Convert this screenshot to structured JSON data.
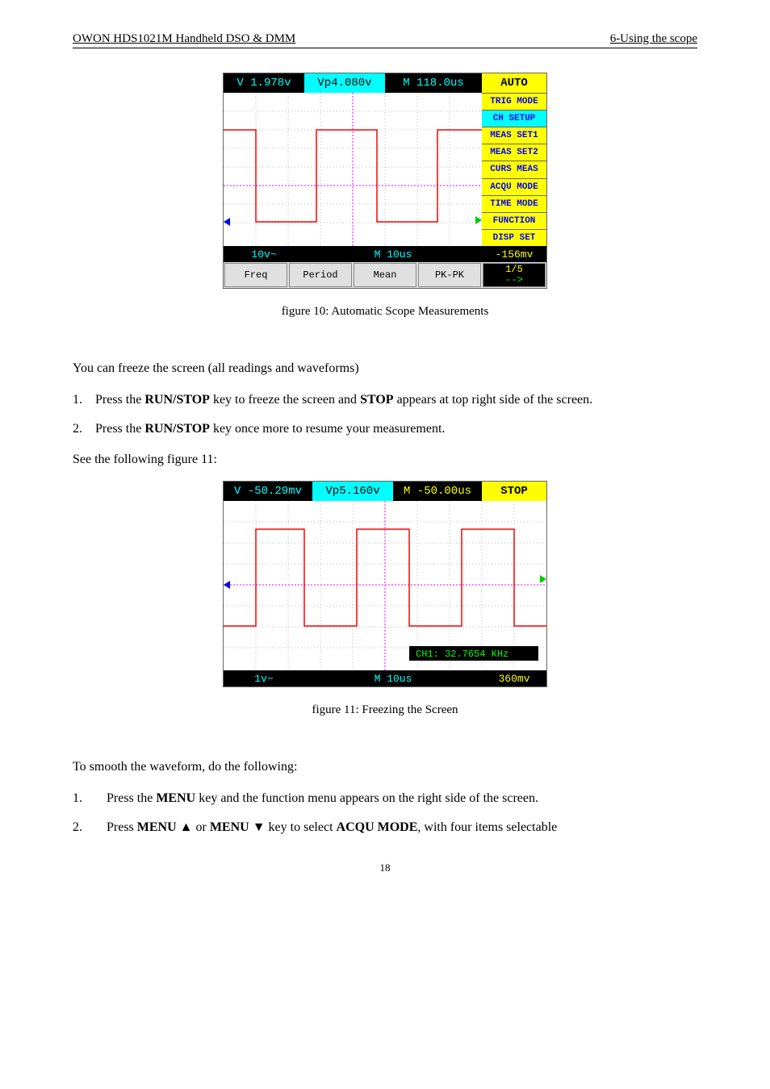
{
  "header": {
    "left": "OWON   HDS1021M Handheld DSO & DMM",
    "right": "6-Using the scope"
  },
  "scope1": {
    "top": {
      "v_label": "V 1.978v",
      "vp_label": "Vp4.080v",
      "m_label": "M 118.0us",
      "mode": "AUTO"
    },
    "menu": [
      "TRIG MODE",
      "CH SETUP",
      "MEAS SET1",
      "MEAS SET2",
      "CURS MEAS",
      "ACQU MODE",
      "TIME MODE",
      "FUNCTION",
      "DISP SET"
    ],
    "menu_hl_index": 1,
    "mid": {
      "left": "10v~",
      "center": "M 10us",
      "right": "-156mv"
    },
    "bottom": [
      "Freq",
      "Period",
      "Mean",
      "PK-PK"
    ],
    "bottom_page": "1/5",
    "bottom_arrow": "-->",
    "colors": {
      "bg_black": "#000000",
      "cyan": "#00ffff",
      "yellow": "#ffff00",
      "blue": "#0000ff",
      "red": "#ff0000",
      "green": "#00cc00",
      "magenta": "#ff00ff"
    }
  },
  "figcap1": "figure 10: Automatic Scope Measurements",
  "intro2": "You can freeze the screen (all readings and waveforms)",
  "steps_a": [
    {
      "n": "1.",
      "pre": "Press the ",
      "b1": "RUN/STOP",
      "mid": " key to freeze the screen and ",
      "b2": "STOP",
      "post": " appears at top right side of the screen."
    },
    {
      "n": "2.",
      "pre": "Press the ",
      "b1": "RUN/STOP",
      "mid": " key once more to resume your measurement.",
      "b2": "",
      "post": ""
    }
  ],
  "seefig": "See the following figure 11:",
  "scope2": {
    "top": {
      "v_label": "V -50.29mv",
      "vp_label": "Vp5.160v",
      "m_label": "M -50.00us",
      "mode": "STOP"
    },
    "ch_label": "CH1: 32.7654 KHz",
    "mid": {
      "left": "1v~",
      "center": "M 10us",
      "right": "360mv"
    }
  },
  "figcap2": "figure 11: Freezing the Screen",
  "intro3": "To smooth the waveform, do the following:",
  "steps_b": [
    {
      "n": "1.",
      "pre": "Press the ",
      "b1": "MENU",
      "post": " key and the function menu appears on the right side of the screen."
    },
    {
      "n": "2.",
      "pre": "Press ",
      "b1": "MENU  ▲",
      "mid": " or ",
      "b2": "MENU  ▼",
      "mid2": " key to select ",
      "b3": "ACQU MODE",
      "post": ", with four items selectable"
    }
  ],
  "pagenum": "18"
}
